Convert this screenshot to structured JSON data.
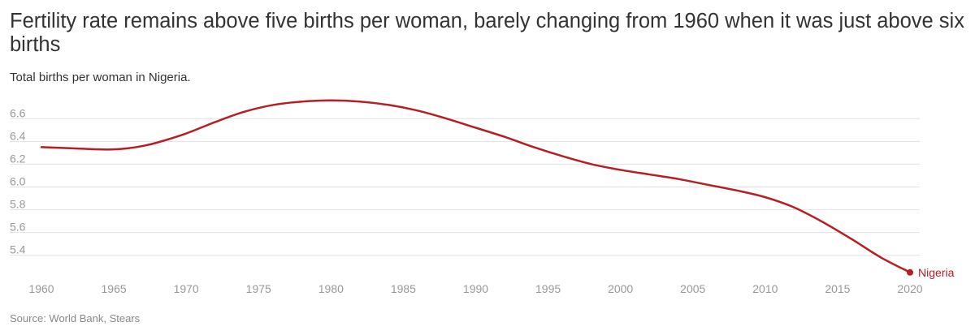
{
  "title": "Fertility rate remains above five births per woman, barely changing from 1960 when it was just above six births",
  "subtitle": "Total births per woman in Nigeria.",
  "source": "Source: World Bank, Stears",
  "colors": {
    "series": "#b61e23",
    "grid": "#e2e2e2",
    "tick": "#999999",
    "text": "#333333"
  },
  "chart_data": {
    "type": "line",
    "title": "Fertility rate remains above five births per woman, barely changing from 1960 when it was just above six births",
    "subtitle": "Total births per woman in Nigeria.",
    "xlabel": "",
    "ylabel": "",
    "xlim": [
      1960,
      2020
    ],
    "ylim": [
      5.22,
      6.78
    ],
    "x_ticks": [
      1960,
      1965,
      1970,
      1975,
      1980,
      1985,
      1990,
      1995,
      2000,
      2005,
      2010,
      2015,
      2020
    ],
    "y_ticks": [
      5.4,
      5.6,
      5.8,
      6.0,
      6.2,
      6.4,
      6.6
    ],
    "grid": "horizontal",
    "series": [
      {
        "name": "Nigeria",
        "x": [
          1960,
          1962,
          1964,
          1965,
          1966,
          1967,
          1968,
          1970,
          1972,
          1974,
          1976,
          1978,
          1980,
          1982,
          1984,
          1986,
          1988,
          1990,
          1992,
          1994,
          1996,
          1998,
          2000,
          2002,
          2004,
          2006,
          2008,
          2010,
          2012,
          2014,
          2016,
          2018,
          2020
        ],
        "values": [
          6.35,
          6.34,
          6.33,
          6.33,
          6.34,
          6.36,
          6.39,
          6.47,
          6.57,
          6.66,
          6.72,
          6.75,
          6.76,
          6.75,
          6.72,
          6.67,
          6.6,
          6.52,
          6.44,
          6.35,
          6.27,
          6.2,
          6.15,
          6.11,
          6.07,
          6.02,
          5.97,
          5.91,
          5.82,
          5.69,
          5.54,
          5.38,
          5.25
        ]
      }
    ]
  }
}
